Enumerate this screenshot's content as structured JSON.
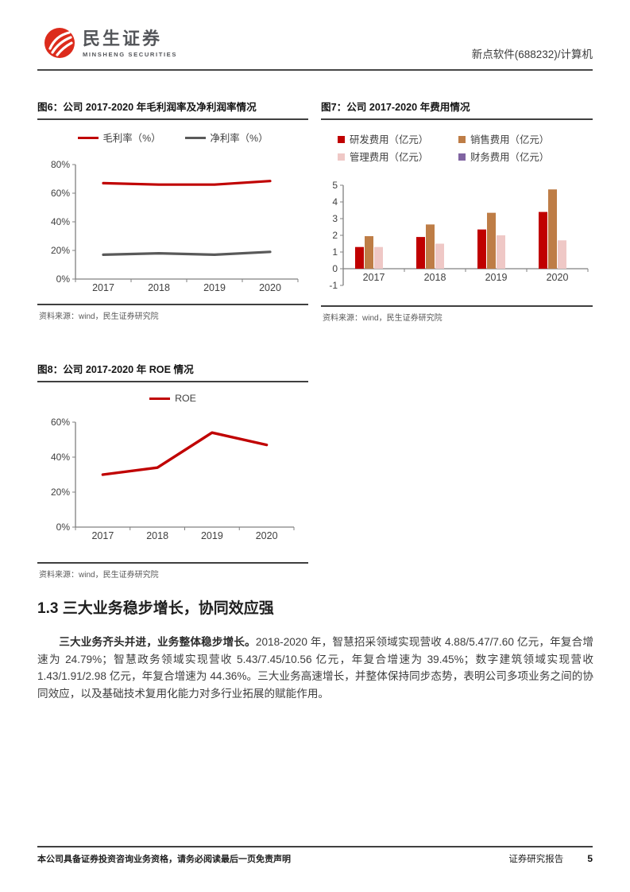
{
  "header": {
    "logo_cn": "民生证券",
    "logo_en": "MINSHENG SECURITIES",
    "doc_title": "新点软件(688232)/计算机"
  },
  "figures": {
    "fig6": {
      "title": "图6：公司 2017-2020 年毛利润率及净利润率情况",
      "source": "资料来源：wind，民生证券研究院"
    },
    "fig7": {
      "title": "图7：公司 2017-2020 年费用情况",
      "source": "资料来源：wind，民生证券研究院"
    },
    "fig8": {
      "title": "图8：公司 2017-2020 年 ROE 情况",
      "source": "资料来源：wind，民生证券研究院"
    }
  },
  "section": {
    "heading": "1.3 三大业务稳步增长，协同效应强",
    "para_lead": "三大业务齐头并进，业务整体稳步增长。",
    "para_body": "2018-2020 年，智慧招采领域实现营收 4.88/5.47/7.60 亿元，年复合增速为 24.79%；智慧政务领域实现营收 5.43/7.45/10.56 亿元，年复合增速为 39.45%；数字建筑领域实现营收 1.43/1.91/2.98 亿元，年复合增速为 44.36%。三大业务高速增长，并整体保持同步态势，表明公司多项业务之间的协同效应，以及基础技术复用化能力对多行业拓展的赋能作用。"
  },
  "footer": {
    "left": "本公司具备证券投资咨询业务资格，请务必阅读最后一页免责声明",
    "right": "证券研究报告",
    "page": "5"
  },
  "colors": {
    "accent_red": "#C00000",
    "axis_gray": "#808080",
    "tick_text": "#404040"
  },
  "chart_data": [
    {
      "id": "fig6",
      "type": "line",
      "title": "公司 2017-2020 年毛利润率及净利润率情况",
      "categories": [
        "2017",
        "2018",
        "2019",
        "2020"
      ],
      "series": [
        {
          "name": "毛利率（%）",
          "color": "#C00000",
          "values": [
            67,
            66,
            66,
            68.5
          ]
        },
        {
          "name": "净利率（%）",
          "color": "#595959",
          "values": [
            17,
            18,
            17,
            19
          ]
        }
      ],
      "ylim": [
        0,
        80
      ],
      "ytick_step": 20,
      "ytick_suffix": "%",
      "grid": false,
      "legend_position": "top",
      "source": "wind，民生证券研究院"
    },
    {
      "id": "fig7",
      "type": "bar",
      "title": "公司 2017-2020 年费用情况",
      "categories": [
        "2017",
        "2018",
        "2019",
        "2020"
      ],
      "series": [
        {
          "name": "研发费用（亿元）",
          "color": "#C00000",
          "values": [
            1.3,
            1.9,
            2.35,
            3.4
          ]
        },
        {
          "name": "销售费用（亿元）",
          "color": "#BE7D46",
          "values": [
            1.95,
            2.65,
            3.35,
            4.75
          ]
        },
        {
          "name": "管理费用（亿元）",
          "color": "#EFC8C6",
          "values": [
            1.3,
            1.5,
            2.0,
            1.7
          ]
        },
        {
          "name": "财务费用（亿元）",
          "color": "#8064A2",
          "values": [
            0,
            0,
            0,
            0
          ]
        }
      ],
      "ylim": [
        -1,
        5
      ],
      "ytick_step": 1,
      "ytick_suffix": "",
      "grid": false,
      "legend_position": "top",
      "source": "wind，民生证券研究院"
    },
    {
      "id": "fig8",
      "type": "line",
      "title": "公司 2017-2020 年 ROE 情况",
      "categories": [
        "2017",
        "2018",
        "2019",
        "2020"
      ],
      "series": [
        {
          "name": "ROE",
          "color": "#C00000",
          "values": [
            30,
            34,
            54,
            47
          ]
        }
      ],
      "ylim": [
        0,
        60
      ],
      "ytick_step": 20,
      "ytick_suffix": "%",
      "grid": false,
      "legend_position": "top",
      "source": "wind，民生证券研究院"
    }
  ]
}
